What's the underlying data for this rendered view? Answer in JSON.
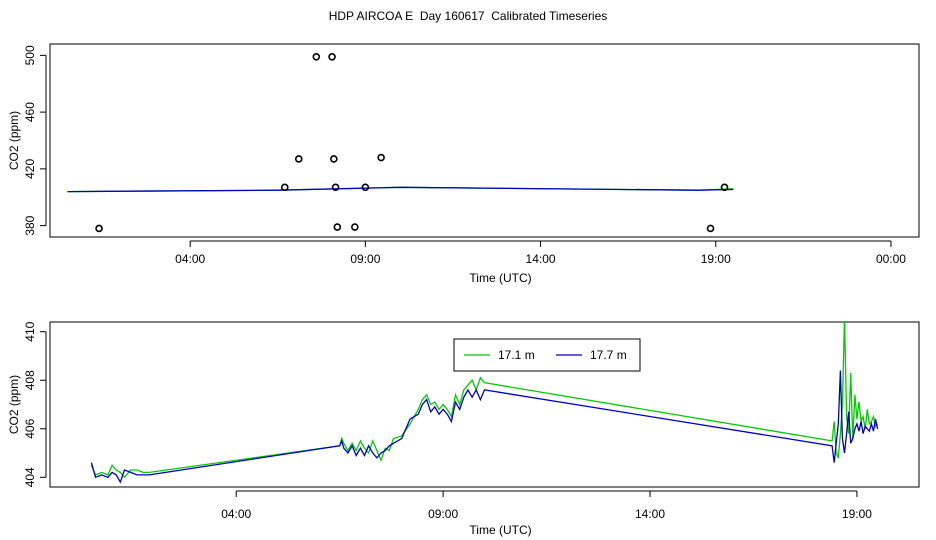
{
  "title": "HDP AIRCOA E  Day 160617  Calibrated Timeseries",
  "colors": {
    "green": "#00cc00",
    "blue": "#0000cc",
    "black": "#000000"
  },
  "chart_data": [
    {
      "type": "scatter",
      "title": "",
      "xlabel": "Time (UTC)",
      "ylabel": "CO2 (ppm)",
      "x_unit": "hours",
      "xlim": [
        0,
        24.8
      ],
      "ylim": [
        372,
        508
      ],
      "x_ticks": [
        {
          "v": 4,
          "label": "04:00"
        },
        {
          "v": 9,
          "label": "09:00"
        },
        {
          "v": 14,
          "label": "14:00"
        },
        {
          "v": 19,
          "label": "19:00"
        },
        {
          "v": 24,
          "label": "00:00"
        }
      ],
      "y_ticks": [
        {
          "v": 380,
          "label": "380"
        },
        {
          "v": 420,
          "label": "420"
        },
        {
          "v": 460,
          "label": "460"
        },
        {
          "v": 500,
          "label": "500"
        }
      ],
      "points": [
        {
          "x": 1.4,
          "y": 378
        },
        {
          "x": 6.7,
          "y": 407
        },
        {
          "x": 7.1,
          "y": 427
        },
        {
          "x": 7.6,
          "y": 499
        },
        {
          "x": 8.05,
          "y": 499
        },
        {
          "x": 8.1,
          "y": 427
        },
        {
          "x": 8.15,
          "y": 407
        },
        {
          "x": 8.2,
          "y": 379
        },
        {
          "x": 8.7,
          "y": 379
        },
        {
          "x": 9.0,
          "y": 407
        },
        {
          "x": 9.45,
          "y": 428
        },
        {
          "x": 18.85,
          "y": 378
        },
        {
          "x": 19.25,
          "y": 407
        }
      ],
      "series": [
        {
          "name": "17.1 m",
          "color": "#00cc00",
          "x": [
            0.5,
            6.5,
            10.0,
            18.5,
            19.5
          ],
          "y": [
            404,
            405,
            407,
            405,
            406
          ]
        },
        {
          "name": "17.7 m",
          "color": "#0000cc",
          "x": [
            0.5,
            6.5,
            10.0,
            18.5,
            19.5
          ],
          "y": [
            404,
            405,
            407,
            405,
            405.5
          ]
        }
      ]
    },
    {
      "type": "line",
      "title": "",
      "xlabel": "Time (UTC)",
      "ylabel": "CO2 (ppm)",
      "x_unit": "hours",
      "xlim": [
        -0.5,
        20.5
      ],
      "ylim": [
        403.6,
        410.4
      ],
      "legend_position": "top-right",
      "x_ticks": [
        {
          "v": 4,
          "label": "04:00"
        },
        {
          "v": 9,
          "label": "09:00"
        },
        {
          "v": 14,
          "label": "14:00"
        },
        {
          "v": 19,
          "label": "19:00"
        }
      ],
      "y_ticks": [
        {
          "v": 404,
          "label": "404"
        },
        {
          "v": 406,
          "label": "406"
        },
        {
          "v": 408,
          "label": "408"
        },
        {
          "v": 410,
          "label": "410"
        }
      ],
      "series": [
        {
          "name": "17.1 m",
          "color": "#00cc00",
          "x": [
            0.5,
            0.6,
            0.75,
            0.9,
            1.0,
            1.1,
            1.2,
            1.3,
            1.45,
            1.6,
            1.75,
            1.9,
            6.5,
            6.55,
            6.6,
            6.7,
            6.8,
            6.9,
            7.0,
            7.1,
            7.2,
            7.3,
            7.4,
            7.5,
            7.6,
            7.7,
            7.8,
            8.0,
            8.2,
            8.4,
            8.5,
            8.6,
            8.7,
            8.8,
            8.9,
            9.0,
            9.1,
            9.2,
            9.3,
            9.4,
            9.5,
            9.6,
            9.7,
            9.8,
            9.9,
            10.0,
            18.4,
            18.45,
            18.5,
            18.55,
            18.6,
            18.65,
            18.7,
            18.75,
            18.8,
            18.85,
            18.9,
            18.95,
            19.0,
            19.05,
            19.1,
            19.15,
            19.2,
            19.25,
            19.3,
            19.35,
            19.4,
            19.45,
            19.5
          ],
          "y": [
            404.5,
            404.1,
            404.2,
            404.1,
            404.5,
            404.3,
            404.2,
            404.0,
            404.3,
            404.3,
            404.2,
            404.2,
            405.3,
            405.6,
            405.4,
            405.1,
            405.4,
            405.1,
            405.5,
            405.2,
            405.0,
            405.5,
            405.1,
            404.7,
            405.2,
            405.1,
            405.6,
            405.7,
            406.2,
            406.8,
            407.2,
            407.4,
            407.0,
            407.1,
            406.8,
            407.0,
            406.8,
            406.5,
            407.4,
            407.0,
            407.6,
            407.8,
            408.0,
            407.6,
            408.1,
            407.9,
            405.5,
            406.3,
            405.0,
            404.8,
            405.8,
            407.0,
            410.6,
            406.5,
            405.8,
            408.3,
            405.6,
            407.4,
            406.4,
            407.1,
            406.3,
            406.5,
            406.0,
            406.8,
            406.2,
            406.3,
            406.5,
            406.1,
            406.2
          ]
        },
        {
          "name": "17.7 m",
          "color": "#0000cc",
          "x": [
            0.5,
            0.6,
            0.75,
            0.9,
            1.0,
            1.1,
            1.2,
            1.3,
            1.45,
            1.6,
            1.75,
            1.9,
            6.5,
            6.55,
            6.6,
            6.7,
            6.8,
            6.9,
            7.0,
            7.1,
            7.2,
            7.3,
            7.4,
            7.5,
            7.6,
            7.7,
            7.8,
            8.0,
            8.2,
            8.4,
            8.5,
            8.6,
            8.7,
            8.8,
            8.9,
            9.0,
            9.1,
            9.2,
            9.3,
            9.4,
            9.5,
            9.6,
            9.7,
            9.8,
            9.9,
            10.0,
            18.4,
            18.45,
            18.5,
            18.55,
            18.6,
            18.65,
            18.7,
            18.75,
            18.8,
            18.85,
            18.9,
            18.95,
            19.0,
            19.05,
            19.1,
            19.15,
            19.2,
            19.25,
            19.3,
            19.35,
            19.4,
            19.45,
            19.5
          ],
          "y": [
            404.6,
            404.0,
            404.1,
            404.0,
            404.2,
            404.1,
            403.8,
            404.3,
            404.2,
            404.1,
            404.1,
            404.1,
            405.3,
            405.5,
            405.2,
            405.0,
            405.3,
            404.9,
            405.2,
            404.9,
            405.3,
            405.0,
            404.8,
            405.0,
            405.1,
            405.3,
            405.4,
            405.6,
            406.4,
            406.6,
            407.0,
            407.2,
            406.7,
            406.9,
            406.6,
            406.8,
            406.6,
            406.3,
            407.1,
            406.8,
            407.3,
            407.6,
            407.3,
            407.6,
            407.2,
            407.6,
            405.3,
            404.6,
            405.4,
            406.2,
            408.4,
            405.6,
            405.0,
            405.8,
            406.7,
            405.4,
            405.6,
            406.0,
            406.2,
            405.9,
            406.3,
            405.8,
            406.1,
            406.0,
            405.9,
            406.2,
            405.9,
            406.4,
            406.0
          ]
        }
      ]
    }
  ]
}
